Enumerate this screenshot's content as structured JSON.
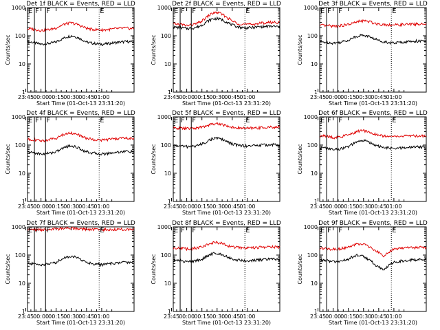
{
  "chart_data": [
    {
      "type": "line",
      "title": "Det 1f BLACK = Events, RED = LLD",
      "xlabel": "Start Time (01-Oct-13 23:31:20)",
      "ylabel": "Counts/sec",
      "yscale": "log",
      "ylim": [
        1,
        1000
      ],
      "ytick_labels": [
        "1",
        "10",
        "100",
        "1000"
      ],
      "xtick_labels": [
        "23:45",
        "00:00",
        "00:15",
        "00:30",
        "00:45",
        "01:00"
      ],
      "markers": [
        "E",
        "F",
        "F",
        "E"
      ],
      "series": [
        {
          "name": "Events",
          "color": "#000000",
          "x": [
            -10,
            -5,
            0,
            5,
            10,
            15,
            20,
            25,
            30,
            35,
            40,
            45,
            50,
            55,
            60,
            65,
            70,
            75,
            80,
            85,
            90
          ],
          "values": [
            60,
            55,
            50,
            52,
            55,
            60,
            75,
            90,
            100,
            90,
            75,
            60,
            55,
            52,
            50,
            52,
            55,
            58,
            60,
            62,
            60
          ]
        },
        {
          "name": "LLD",
          "color": "#e00000",
          "x": [
            -10,
            -5,
            0,
            5,
            10,
            15,
            20,
            25,
            30,
            35,
            40,
            45,
            50,
            55,
            60,
            65,
            70,
            75,
            80,
            85,
            90
          ],
          "values": [
            175,
            165,
            155,
            160,
            170,
            190,
            230,
            270,
            285,
            260,
            220,
            185,
            170,
            165,
            160,
            165,
            170,
            180,
            185,
            185,
            180
          ]
        }
      ]
    },
    {
      "type": "line",
      "title": "Det 2f BLACK = Events, RED = LLD",
      "xlabel": "Start Time (01-Oct-13 23:31:20)",
      "ylabel": "Counts/sec",
      "yscale": "log",
      "ylim": [
        1,
        1000
      ],
      "ytick_labels": [
        "1",
        "10",
        "100",
        "1000"
      ],
      "xtick_labels": [
        "23:45",
        "00:00",
        "00:15",
        "00:30",
        "00:45",
        "01:00"
      ],
      "markers": [
        "E",
        "F",
        "F",
        "E"
      ],
      "series": [
        {
          "name": "Events",
          "color": "#000000",
          "x": [
            -10,
            -5,
            0,
            5,
            10,
            15,
            20,
            25,
            30,
            35,
            40,
            45,
            50,
            55,
            60,
            65,
            70,
            75,
            80,
            85,
            90
          ],
          "values": [
            200,
            190,
            180,
            185,
            200,
            240,
            320,
            390,
            410,
            370,
            300,
            240,
            210,
            195,
            190,
            195,
            205,
            210,
            215,
            215,
            210
          ]
        },
        {
          "name": "LLD",
          "color": "#e00000",
          "x": [
            -10,
            -5,
            0,
            5,
            10,
            15,
            20,
            25,
            30,
            35,
            40,
            45,
            50,
            55,
            60,
            65,
            70,
            75,
            80,
            85,
            90
          ],
          "values": [
            260,
            250,
            230,
            240,
            270,
            330,
            460,
            620,
            670,
            580,
            440,
            330,
            280,
            260,
            250,
            255,
            270,
            285,
            295,
            300,
            300
          ]
        }
      ]
    },
    {
      "type": "line",
      "title": "Det 3f BLACK = Events, RED = LLD",
      "xlabel": "Start Time (01-Oct-13 23:31:20)",
      "ylabel": "Counts/sec",
      "yscale": "log",
      "ylim": [
        1,
        1000
      ],
      "ytick_labels": [
        "1",
        "10",
        "100",
        "1000"
      ],
      "xtick_labels": [
        "23:45",
        "00:00",
        "00:15",
        "00:30",
        "00:45",
        "01:00"
      ],
      "markers": [
        "E",
        "F",
        "F",
        "E"
      ],
      "series": [
        {
          "name": "Events",
          "color": "#000000",
          "x": [
            -10,
            -5,
            0,
            5,
            10,
            15,
            20,
            25,
            30,
            35,
            40,
            45,
            50,
            55,
            60,
            65,
            70,
            75,
            80,
            85,
            90
          ],
          "values": [
            60,
            58,
            55,
            58,
            62,
            70,
            85,
            100,
            105,
            95,
            80,
            68,
            62,
            58,
            55,
            58,
            60,
            62,
            65,
            65,
            63
          ]
        },
        {
          "name": "LLD",
          "color": "#e00000",
          "x": [
            -10,
            -5,
            0,
            5,
            10,
            15,
            20,
            25,
            30,
            35,
            40,
            45,
            50,
            55,
            60,
            65,
            70,
            75,
            80,
            85,
            90
          ],
          "values": [
            230,
            225,
            220,
            225,
            235,
            250,
            280,
            320,
            340,
            320,
            285,
            260,
            250,
            245,
            240,
            245,
            250,
            255,
            260,
            260,
            255
          ]
        }
      ]
    },
    {
      "type": "line",
      "title": "Det 4f BLACK = Events, RED = LLD",
      "xlabel": "Start Time (01-Oct-13 23:31:20)",
      "ylabel": "Counts/sec",
      "yscale": "log",
      "ylim": [
        1,
        1000
      ],
      "ytick_labels": [
        "1",
        "10",
        "100",
        "1000"
      ],
      "xtick_labels": [
        "23:45",
        "00:00",
        "00:15",
        "00:30",
        "00:45",
        "01:00"
      ],
      "markers": [
        "E",
        "F",
        "F",
        "E"
      ],
      "series": [
        {
          "name": "Events",
          "color": "#000000",
          "x": [
            -10,
            -5,
            0,
            5,
            10,
            15,
            20,
            25,
            30,
            35,
            40,
            45,
            50,
            55,
            60,
            65,
            70,
            75,
            80,
            85,
            90
          ],
          "values": [
            55,
            52,
            48,
            50,
            53,
            58,
            72,
            88,
            95,
            85,
            70,
            58,
            53,
            50,
            48,
            50,
            53,
            56,
            58,
            60,
            58
          ]
        },
        {
          "name": "LLD",
          "color": "#e00000",
          "x": [
            -10,
            -5,
            0,
            5,
            10,
            15,
            20,
            25,
            30,
            35,
            40,
            45,
            50,
            55,
            60,
            65,
            70,
            75,
            80,
            85,
            90
          ],
          "values": [
            160,
            150,
            140,
            148,
            160,
            180,
            215,
            255,
            270,
            245,
            205,
            175,
            160,
            155,
            150,
            155,
            162,
            170,
            175,
            175,
            170
          ]
        }
      ]
    },
    {
      "type": "line",
      "title": "Det 5f BLACK = Events, RED = LLD",
      "xlabel": "Start Time (01-Oct-13 23:31:20)",
      "ylabel": "Counts/sec",
      "yscale": "log",
      "ylim": [
        1,
        1000
      ],
      "ytick_labels": [
        "1",
        "10",
        "100",
        "1000"
      ],
      "xtick_labels": [
        "23:45",
        "00:00",
        "00:15",
        "00:30",
        "00:45",
        "01:00"
      ],
      "markers": [
        "E",
        "F",
        "F",
        "E"
      ],
      "series": [
        {
          "name": "Events",
          "color": "#000000",
          "x": [
            -10,
            -5,
            0,
            5,
            10,
            15,
            20,
            25,
            30,
            35,
            40,
            45,
            50,
            55,
            60,
            65,
            70,
            75,
            80,
            85,
            90
          ],
          "values": [
            95,
            92,
            88,
            90,
            96,
            108,
            135,
            165,
            175,
            160,
            130,
            110,
            100,
            96,
            93,
            95,
            98,
            100,
            102,
            103,
            100
          ]
        },
        {
          "name": "LLD",
          "color": "#e00000",
          "x": [
            -10,
            -5,
            0,
            5,
            10,
            15,
            20,
            25,
            30,
            35,
            40,
            45,
            50,
            55,
            60,
            65,
            70,
            75,
            80,
            85,
            90
          ],
          "values": [
            400,
            395,
            385,
            390,
            405,
            430,
            490,
            560,
            580,
            540,
            470,
            430,
            410,
            400,
            395,
            400,
            410,
            420,
            425,
            430,
            430
          ]
        }
      ]
    },
    {
      "type": "line",
      "title": "Det 6f BLACK = Events, RED = LLD",
      "xlabel": "Start Time (01-Oct-13 23:31:20)",
      "ylabel": "Counts/sec",
      "yscale": "log",
      "ylim": [
        1,
        1000
      ],
      "ytick_labels": [
        "1",
        "10",
        "100",
        "1000"
      ],
      "xtick_labels": [
        "23:45",
        "00:00",
        "00:15",
        "00:30",
        "00:45",
        "01:00"
      ],
      "markers": [
        "E",
        "F",
        "F",
        "E"
      ],
      "series": [
        {
          "name": "Events",
          "color": "#000000",
          "x": [
            -10,
            -5,
            0,
            5,
            10,
            15,
            20,
            25,
            30,
            35,
            40,
            45,
            50,
            55,
            60,
            65,
            70,
            75,
            80,
            85,
            90
          ],
          "values": [
            80,
            75,
            70,
            72,
            78,
            88,
            110,
            135,
            145,
            130,
            108,
            90,
            82,
            78,
            75,
            77,
            80,
            83,
            85,
            86,
            85
          ]
        },
        {
          "name": "LLD",
          "color": "#e00000",
          "x": [
            -10,
            -5,
            0,
            5,
            10,
            15,
            20,
            25,
            30,
            35,
            40,
            45,
            50,
            55,
            60,
            65,
            70,
            75,
            80,
            85,
            90
          ],
          "values": [
            210,
            200,
            185,
            190,
            205,
            225,
            265,
            310,
            325,
            300,
            255,
            225,
            210,
            205,
            200,
            203,
            208,
            212,
            215,
            215,
            212
          ]
        }
      ]
    },
    {
      "type": "line",
      "title": "Det 7f BLACK = Events, RED = LLD",
      "xlabel": "Start Time (01-Oct-13 23:31:20)",
      "ylabel": "Counts/sec",
      "yscale": "log",
      "ylim": [
        1,
        1000
      ],
      "ytick_labels": [
        "1",
        "10",
        "100",
        "1000"
      ],
      "xtick_labels": [
        "23:45",
        "00:00",
        "00:15",
        "00:30",
        "00:45",
        "01:00"
      ],
      "markers": [
        "E",
        "F",
        "F",
        "E"
      ],
      "series": [
        {
          "name": "Events",
          "color": "#000000",
          "x": [
            -10,
            -5,
            0,
            5,
            10,
            15,
            20,
            25,
            30,
            35,
            40,
            45,
            50,
            55,
            60,
            65,
            70,
            75,
            80,
            85,
            90
          ],
          "values": [
            50,
            48,
            45,
            47,
            50,
            55,
            70,
            85,
            92,
            82,
            68,
            56,
            50,
            48,
            46,
            48,
            50,
            52,
            55,
            56,
            55
          ]
        },
        {
          "name": "LLD",
          "color": "#e00000",
          "x": [
            -10,
            -5,
            0,
            5,
            10,
            15,
            20,
            25,
            30,
            35,
            40,
            45,
            50,
            55,
            60,
            65,
            70,
            75,
            80,
            85,
            90
          ],
          "values": [
            820,
            810,
            790,
            800,
            820,
            840,
            870,
            890,
            900,
            880,
            850,
            830,
            815,
            805,
            800,
            805,
            815,
            820,
            825,
            830,
            830
          ]
        }
      ]
    },
    {
      "type": "line",
      "title": "Det 8f BLACK = Events, RED = LLD",
      "xlabel": "Start Time (01-Oct-13 23:31:20)",
      "ylabel": "Counts/sec",
      "yscale": "log",
      "ylim": [
        1,
        1000
      ],
      "ytick_labels": [
        "1",
        "10",
        "100",
        "1000"
      ],
      "xtick_labels": [
        "23:45",
        "00:00",
        "00:15",
        "00:30",
        "00:45",
        "01:00"
      ],
      "markers": [
        "E",
        "F",
        "F",
        "E"
      ],
      "series": [
        {
          "name": "Events",
          "color": "#000000",
          "x": [
            -10,
            -5,
            0,
            5,
            10,
            15,
            20,
            25,
            30,
            35,
            40,
            45,
            50,
            55,
            60,
            65,
            70,
            75,
            80,
            85,
            90
          ],
          "values": [
            65,
            62,
            58,
            60,
            64,
            72,
            90,
            110,
            118,
            105,
            88,
            74,
            67,
            64,
            62,
            64,
            66,
            69,
            71,
            72,
            70
          ]
        },
        {
          "name": "LLD",
          "color": "#e00000",
          "x": [
            -10,
            -5,
            0,
            5,
            10,
            15,
            20,
            25,
            30,
            35,
            40,
            45,
            50,
            55,
            60,
            65,
            70,
            75,
            80,
            85,
            90
          ],
          "values": [
            180,
            175,
            165,
            170,
            180,
            200,
            235,
            270,
            280,
            260,
            220,
            195,
            185,
            180,
            178,
            180,
            185,
            190,
            192,
            195,
            192
          ]
        }
      ]
    },
    {
      "type": "line",
      "title": "Det 9f BLACK = Events, RED = LLD",
      "xlabel": "Start Time (01-Oct-13 23:31:20)",
      "ylabel": "Counts/sec",
      "yscale": "log",
      "ylim": [
        1,
        1000
      ],
      "ytick_labels": [
        "1",
        "10",
        "100",
        "1000"
      ],
      "xtick_labels": [
        "23:45",
        "00:00",
        "00:15",
        "00:30",
        "00:45",
        "01:00"
      ],
      "markers": [
        "E",
        "F",
        "F",
        "E"
      ],
      "series": [
        {
          "name": "Events",
          "color": "#000000",
          "x": [
            -10,
            -5,
            0,
            5,
            10,
            15,
            20,
            25,
            30,
            35,
            40,
            45,
            50,
            55,
            60,
            65,
            70,
            75,
            80,
            85,
            90
          ],
          "values": [
            65,
            62,
            58,
            60,
            63,
            72,
            88,
            100,
            90,
            70,
            50,
            38,
            30,
            42,
            55,
            60,
            63,
            66,
            68,
            70,
            68
          ]
        },
        {
          "name": "LLD",
          "color": "#e00000",
          "x": [
            -10,
            -5,
            0,
            5,
            10,
            15,
            20,
            25,
            30,
            35,
            40,
            45,
            50,
            55,
            60,
            65,
            70,
            75,
            80,
            85,
            90
          ],
          "values": [
            175,
            170,
            160,
            165,
            175,
            195,
            225,
            250,
            235,
            200,
            155,
            120,
            95,
            130,
            160,
            170,
            178,
            182,
            185,
            188,
            185
          ]
        }
      ]
    }
  ]
}
